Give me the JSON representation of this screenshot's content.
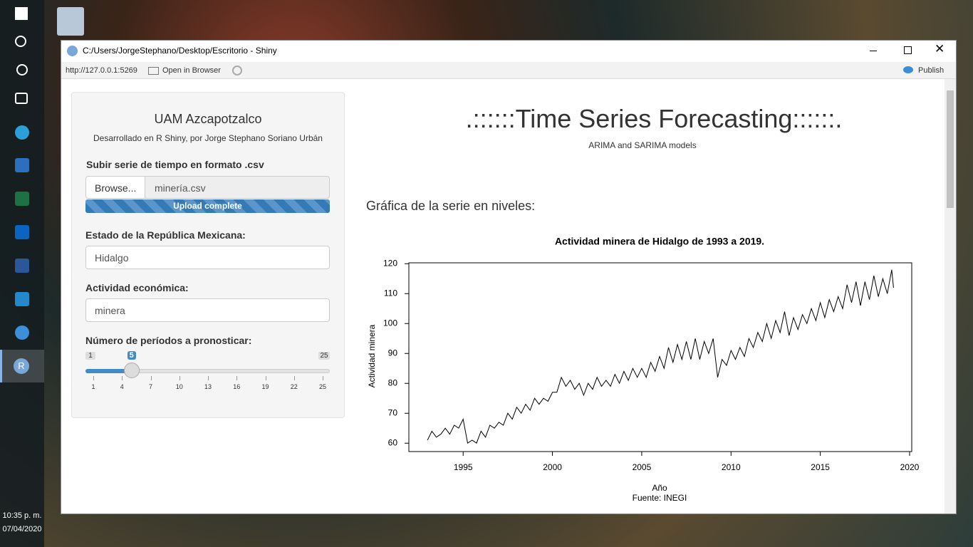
{
  "taskbar": {
    "time": "10:35 p. m.",
    "date": "07/04/2020"
  },
  "window": {
    "title": "C:/Users/JorgeStephano/Desktop/Escritorio - Shiny",
    "url": "http://127.0.0.1:5269",
    "open_in_browser": "Open in Browser",
    "publish": "Publish"
  },
  "sidebar": {
    "title": "UAM Azcapotzalco",
    "subtitle": "Desarrollado en R Shiny, por Jorge Stephano Soriano Urbán",
    "upload_label": "Subir serie de tiempo en formato .csv",
    "browse": "Browse...",
    "file": "minería.csv",
    "progress": "Upload complete",
    "state_label": "Estado de la República Mexicana:",
    "state_value": "Hidalgo",
    "activity_label": "Actividad económica:",
    "activity_value": "minera",
    "slider": {
      "label": "Número de períodos a pronosticar:",
      "min": 1,
      "max": 25,
      "value": 5,
      "ticks": [
        1,
        4,
        7,
        10,
        13,
        16,
        19,
        22,
        25
      ]
    }
  },
  "main": {
    "title": ".::::::Time Series Forecasting::::::.",
    "subtitle": "ARIMA and SARIMA models",
    "section": "Gráfica de la serie en niveles:"
  },
  "chart_data": {
    "type": "line",
    "title": "Actividad minera de Hidalgo de 1993 a 2019.",
    "x_label": "Año",
    "caption": "Fuente: INEGI",
    "y_label": "Actividad minera",
    "color": "#000000",
    "x": [
      1993,
      1993.25,
      1993.5,
      1993.75,
      1994,
      1994.25,
      1994.5,
      1994.75,
      1995,
      1995.25,
      1995.5,
      1995.75,
      1996,
      1996.25,
      1996.5,
      1996.75,
      1997,
      1997.25,
      1997.5,
      1997.75,
      1998,
      1998.25,
      1998.5,
      1998.75,
      1999,
      1999.25,
      1999.5,
      1999.75,
      2000,
      2000.25,
      2000.5,
      2000.75,
      2001,
      2001.25,
      2001.5,
      2001.75,
      2002,
      2002.25,
      2002.5,
      2002.75,
      2003,
      2003.25,
      2003.5,
      2003.75,
      2004,
      2004.25,
      2004.5,
      2004.75,
      2005,
      2005.25,
      2005.5,
      2005.75,
      2006,
      2006.25,
      2006.5,
      2006.75,
      2007,
      2007.25,
      2007.5,
      2007.75,
      2008,
      2008.25,
      2008.5,
      2008.75,
      2009,
      2009.25,
      2009.5,
      2009.75,
      2010,
      2010.25,
      2010.5,
      2010.75,
      2011,
      2011.25,
      2011.5,
      2011.75,
      2012,
      2012.25,
      2012.5,
      2012.75,
      2013,
      2013.25,
      2013.5,
      2013.75,
      2014,
      2014.25,
      2014.5,
      2014.75,
      2015,
      2015.25,
      2015.5,
      2015.75,
      2016,
      2016.25,
      2016.5,
      2016.75,
      2017,
      2017.25,
      2017.5,
      2017.75,
      2018,
      2018.25,
      2018.5,
      2018.75,
      2019,
      2019.1
    ],
    "values": [
      61,
      64,
      62,
      63,
      65,
      63,
      66,
      65,
      68,
      60,
      61,
      60,
      64,
      62,
      66,
      65,
      67,
      66,
      70,
      68,
      72,
      70,
      73,
      71,
      75,
      73,
      75,
      74,
      77,
      77,
      82,
      79,
      81,
      78,
      80,
      76,
      80,
      78,
      82,
      79,
      81,
      79,
      83,
      80,
      84,
      81,
      85,
      82,
      85,
      82,
      87,
      84,
      89,
      85,
      92,
      87,
      93,
      88,
      94,
      88,
      95,
      88,
      94,
      90,
      95,
      82,
      88,
      86,
      91,
      88,
      92,
      89,
      95,
      92,
      97,
      94,
      100,
      95,
      101,
      97,
      104,
      96,
      102,
      98,
      103,
      100,
      105,
      101,
      107,
      102,
      108,
      104,
      109,
      105,
      113,
      107,
      114,
      106,
      114,
      108,
      116,
      109,
      115,
      110,
      118,
      112
    ],
    "xlim": [
      1991.96,
      2020.12
    ],
    "ylim": [
      57.2,
      120.3
    ],
    "xticks": [
      1995,
      2000,
      2005,
      2010,
      2015,
      2020
    ],
    "yticks": [
      60,
      70,
      80,
      90,
      100,
      110,
      120
    ]
  }
}
